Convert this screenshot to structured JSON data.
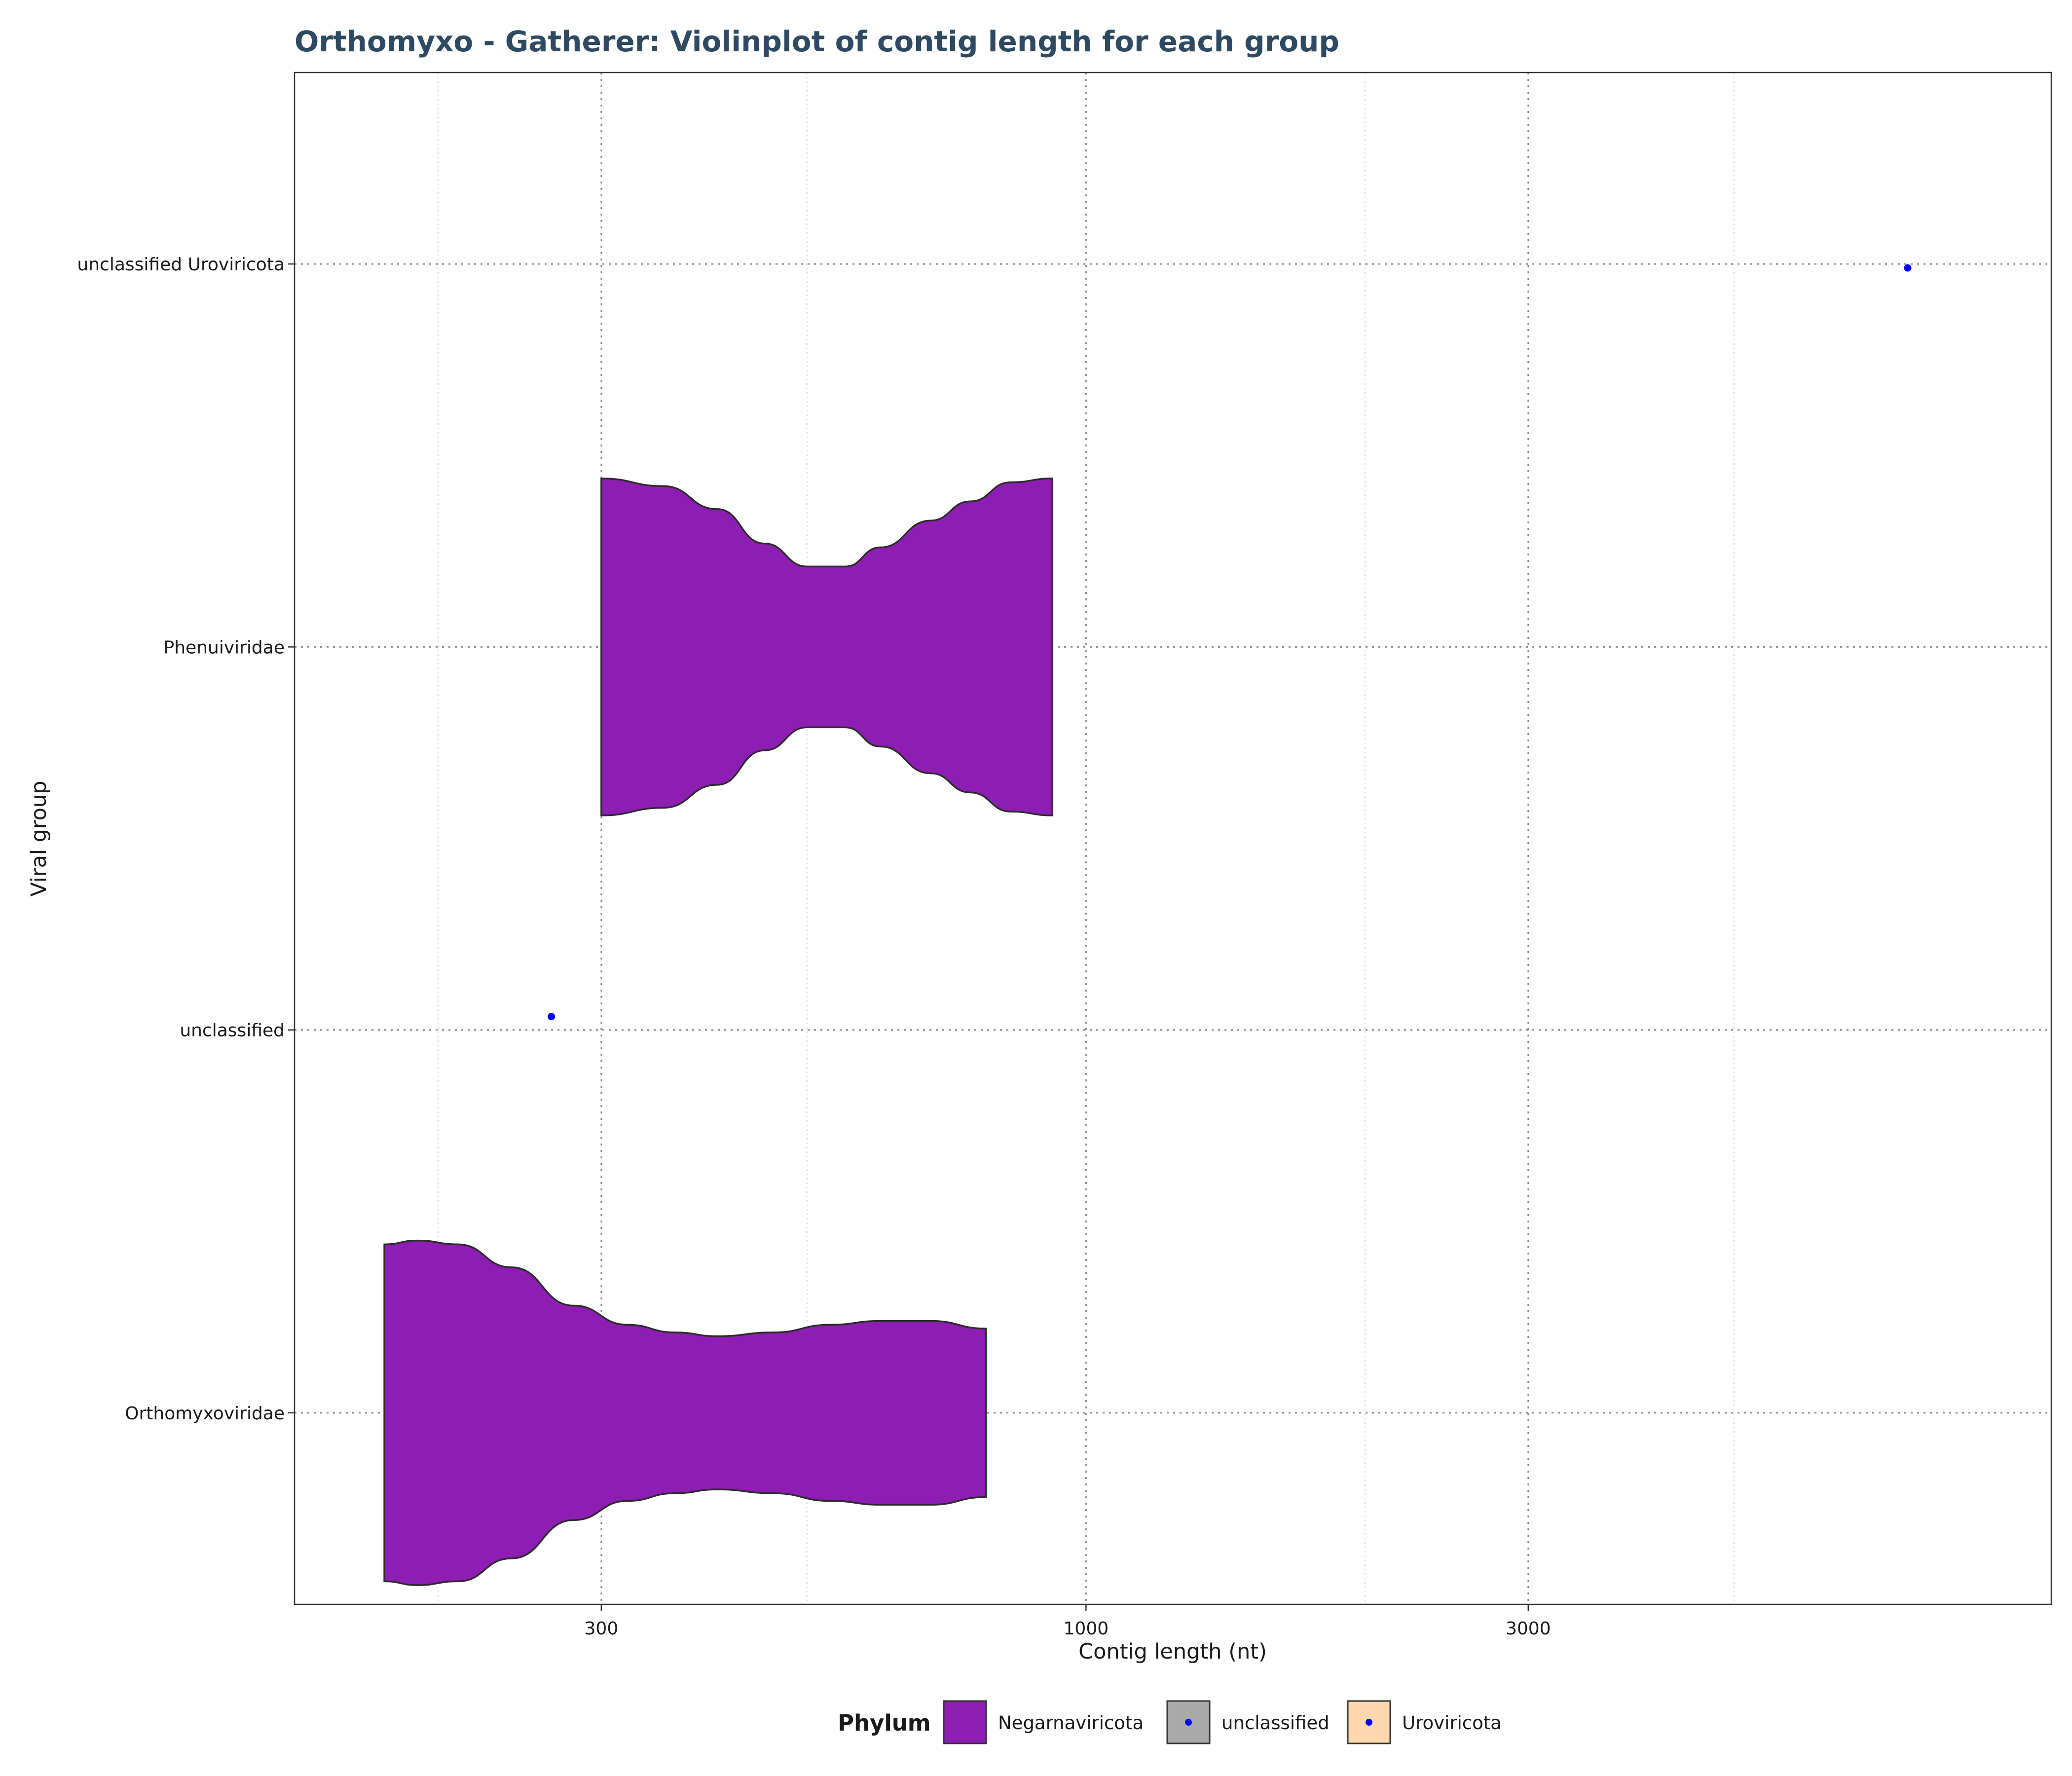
{
  "chart_data": {
    "type": "violin",
    "title": "Orthomyxo - Gatherer: Violinplot of contig length for each group",
    "xlabel": "Contig length (nt)",
    "ylabel": "Viral group",
    "x_scale": "log10",
    "xlim": [
      140,
      11000
    ],
    "x_ticks": [
      300,
      1000,
      3000
    ],
    "x_tick_labels": [
      "300",
      "1000",
      "3000"
    ],
    "grid": true,
    "categories": [
      "unclassified Uroviricota",
      "Phenuiviridae",
      "unclassified",
      "Orthomyxoviridae"
    ],
    "violins": [
      {
        "category": "Phenuiviridae",
        "phylum": "Negarnaviricota",
        "min": 300,
        "max": 920,
        "profile": [
          [
            300,
            0.44
          ],
          [
            350,
            0.42
          ],
          [
            400,
            0.36
          ],
          [
            450,
            0.27
          ],
          [
            500,
            0.21
          ],
          [
            550,
            0.21
          ],
          [
            600,
            0.26
          ],
          [
            680,
            0.33
          ],
          [
            750,
            0.38
          ],
          [
            830,
            0.43
          ],
          [
            920,
            0.44
          ]
        ]
      },
      {
        "category": "Orthomyxoviridae",
        "phylum": "Negarnaviricota",
        "min": 175,
        "max": 780,
        "profile": [
          [
            175,
            0.44
          ],
          [
            190,
            0.45
          ],
          [
            210,
            0.44
          ],
          [
            240,
            0.38
          ],
          [
            280,
            0.28
          ],
          [
            320,
            0.23
          ],
          [
            360,
            0.21
          ],
          [
            400,
            0.2
          ],
          [
            460,
            0.21
          ],
          [
            530,
            0.23
          ],
          [
            600,
            0.24
          ],
          [
            680,
            0.24
          ],
          [
            780,
            0.22
          ]
        ]
      }
    ],
    "points": [
      {
        "category": "unclassified Uroviricota",
        "x": 7700,
        "phylum": "Uroviricota"
      },
      {
        "category": "unclassified",
        "x": 265,
        "phylum": "unclassified"
      }
    ],
    "legend": {
      "title": "Phylum",
      "position": "bottom",
      "items": [
        {
          "label": "Negarnaviricota",
          "fill": "#8e1eb3",
          "point": false
        },
        {
          "label": "unclassified",
          "fill": "#a9a9a9",
          "point": true
        },
        {
          "label": "Uroviricota",
          "fill": "#ffd7b0",
          "point": true
        }
      ]
    },
    "colors": {
      "violin_fill": "#8e1eb3",
      "violin_stroke": "#2b2b2b",
      "point": "#0000ff",
      "title": "#2e4a62"
    }
  }
}
